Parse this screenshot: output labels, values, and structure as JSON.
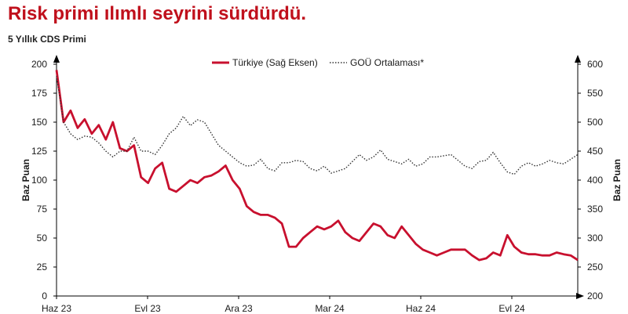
{
  "header": {
    "title": "Risk primi ılımlı seyrini sürdürdü.",
    "subtitle": "5 Yıllık CDS Primi"
  },
  "colors": {
    "title": "#c0101c",
    "turkiye_series": "#c8102e",
    "goü_series": "#333333",
    "axis": "#000000"
  },
  "chart_data": {
    "type": "line",
    "x_tick_labels": [
      "Haz 23",
      "Evl 23",
      "Ara 23",
      "Mar 24",
      "Haz 24",
      "Evl 24"
    ],
    "left_axis": {
      "label": "Baz Puan",
      "range": [
        0,
        200
      ],
      "ticks": [
        0,
        25,
        50,
        75,
        100,
        125,
        150,
        175,
        200
      ]
    },
    "right_axis": {
      "label": "Baz Puan",
      "range": [
        200,
        600
      ],
      "ticks": [
        200,
        250,
        300,
        350,
        400,
        450,
        500,
        550,
        600
      ]
    },
    "legend_position": "top",
    "series": [
      {
        "name": "Türkiye (Sağ Eksen)",
        "axis": "right",
        "style": "solid",
        "x": [
          "2023-06-01",
          "2023-06-08",
          "2023-06-15",
          "2023-06-22",
          "2023-06-29",
          "2023-07-06",
          "2023-07-13",
          "2023-07-20",
          "2023-07-27",
          "2023-08-03",
          "2023-08-10",
          "2023-08-17",
          "2023-08-24",
          "2023-08-31",
          "2023-09-07",
          "2023-09-14",
          "2023-09-21",
          "2023-09-28",
          "2023-10-05",
          "2023-10-12",
          "2023-10-19",
          "2023-10-26",
          "2023-11-02",
          "2023-11-09",
          "2023-11-16",
          "2023-11-23",
          "2023-11-30",
          "2023-12-07",
          "2023-12-14",
          "2023-12-21",
          "2023-12-28",
          "2024-01-04",
          "2024-01-11",
          "2024-01-18",
          "2024-01-25",
          "2024-02-01",
          "2024-02-08",
          "2024-02-15",
          "2024-02-22",
          "2024-02-29",
          "2024-03-07",
          "2024-03-14",
          "2024-03-21",
          "2024-03-28",
          "2024-04-04",
          "2024-04-11",
          "2024-04-18",
          "2024-04-25",
          "2024-05-02",
          "2024-05-09",
          "2024-05-16",
          "2024-05-23",
          "2024-05-30",
          "2024-06-06",
          "2024-06-13",
          "2024-06-20",
          "2024-06-27",
          "2024-07-04",
          "2024-07-11",
          "2024-07-18",
          "2024-07-25",
          "2024-08-01",
          "2024-08-08",
          "2024-08-15",
          "2024-08-22",
          "2024-08-29",
          "2024-09-05",
          "2024-09-12",
          "2024-09-19",
          "2024-09-26",
          "2024-10-03",
          "2024-10-10",
          "2024-10-17",
          "2024-10-24",
          "2024-10-31"
        ],
        "values": [
          590,
          500,
          520,
          490,
          505,
          480,
          495,
          470,
          500,
          455,
          450,
          460,
          405,
          395,
          420,
          430,
          385,
          380,
          390,
          400,
          395,
          405,
          408,
          415,
          425,
          400,
          385,
          355,
          345,
          340,
          340,
          335,
          325,
          285,
          285,
          300,
          310,
          320,
          315,
          320,
          330,
          310,
          300,
          295,
          310,
          325,
          320,
          305,
          300,
          320,
          305,
          290,
          280,
          275,
          270,
          275,
          280,
          280,
          280,
          270,
          262,
          265,
          275,
          270,
          305,
          285,
          275,
          272,
          272,
          270,
          270,
          275,
          272,
          270,
          262
        ]
      },
      {
        "name": "GOÜ Ortalaması*",
        "axis": "left",
        "style": "dotted",
        "x": [
          "2023-06-01",
          "2023-06-08",
          "2023-06-15",
          "2023-06-22",
          "2023-06-29",
          "2023-07-06",
          "2023-07-13",
          "2023-07-20",
          "2023-07-27",
          "2023-08-03",
          "2023-08-10",
          "2023-08-17",
          "2023-08-24",
          "2023-08-31",
          "2023-09-07",
          "2023-09-14",
          "2023-09-21",
          "2023-09-28",
          "2023-10-05",
          "2023-10-12",
          "2023-10-19",
          "2023-10-26",
          "2023-11-02",
          "2023-11-09",
          "2023-11-16",
          "2023-11-23",
          "2023-11-30",
          "2023-12-07",
          "2023-12-14",
          "2023-12-21",
          "2023-12-28",
          "2024-01-04",
          "2024-01-11",
          "2024-01-18",
          "2024-01-25",
          "2024-02-01",
          "2024-02-08",
          "2024-02-15",
          "2024-02-22",
          "2024-02-29",
          "2024-03-07",
          "2024-03-14",
          "2024-03-21",
          "2024-03-28",
          "2024-04-04",
          "2024-04-11",
          "2024-04-18",
          "2024-04-25",
          "2024-05-02",
          "2024-05-09",
          "2024-05-16",
          "2024-05-23",
          "2024-05-30",
          "2024-06-06",
          "2024-06-13",
          "2024-06-20",
          "2024-06-27",
          "2024-07-04",
          "2024-07-11",
          "2024-07-18",
          "2024-07-25",
          "2024-08-01",
          "2024-08-08",
          "2024-08-15",
          "2024-08-22",
          "2024-08-29",
          "2024-09-05",
          "2024-09-12",
          "2024-09-19",
          "2024-09-26",
          "2024-10-03",
          "2024-10-10",
          "2024-10-17",
          "2024-10-24",
          "2024-10-31"
        ],
        "values": [
          190,
          150,
          140,
          135,
          138,
          137,
          132,
          125,
          120,
          125,
          125,
          137,
          125,
          125,
          122,
          130,
          140,
          145,
          155,
          147,
          152,
          150,
          140,
          130,
          125,
          120,
          115,
          112,
          113,
          118,
          110,
          108,
          115,
          115,
          117,
          116,
          110,
          108,
          112,
          106,
          108,
          110,
          116,
          122,
          117,
          120,
          126,
          118,
          116,
          114,
          118,
          112,
          114,
          120,
          120,
          121,
          122,
          117,
          112,
          110,
          116,
          117,
          124,
          115,
          107,
          105,
          112,
          115,
          112,
          114,
          117,
          115,
          114,
          118,
          122
        ]
      }
    ]
  }
}
